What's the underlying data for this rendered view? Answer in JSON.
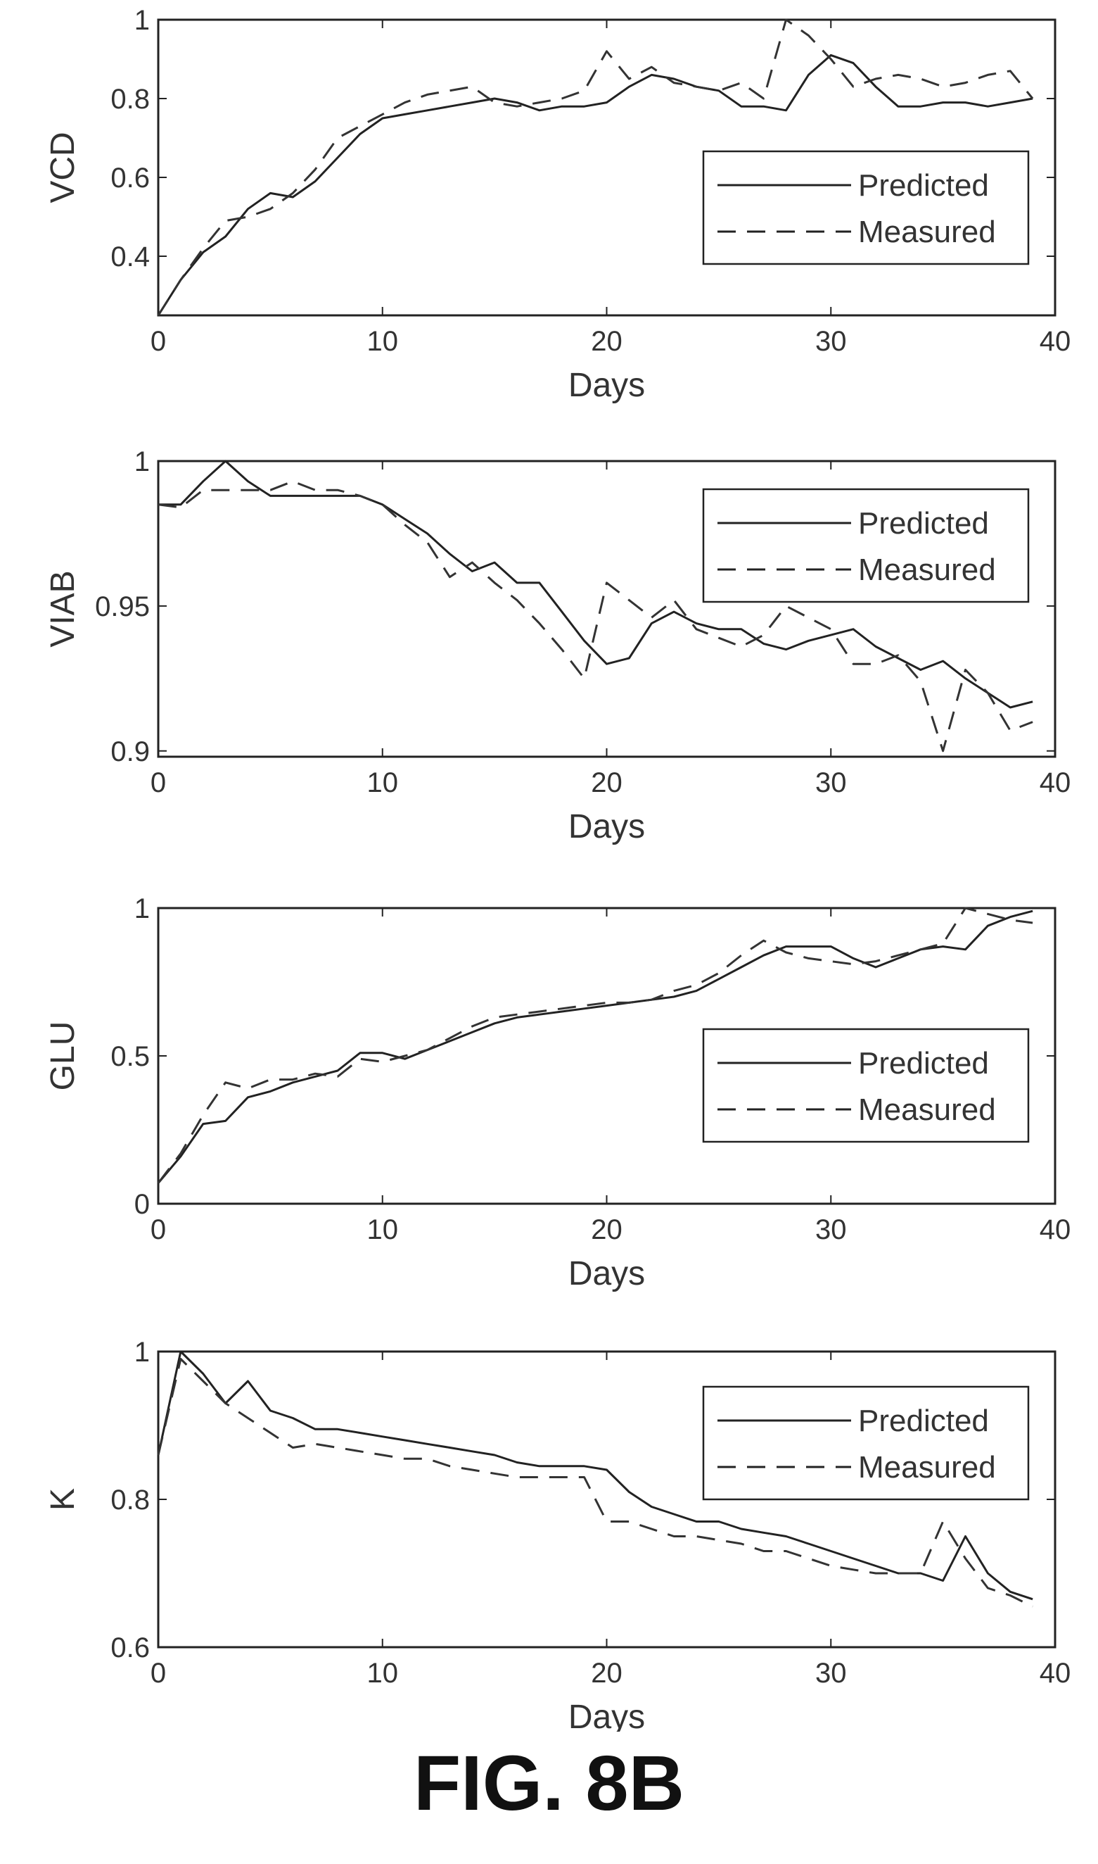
{
  "caption": "FIG. 8B",
  "chart_data": [
    {
      "type": "line",
      "ylabel": "VCD",
      "xlabel": "Days",
      "xlim": [
        0,
        40
      ],
      "ylim": [
        0.25,
        1.0
      ],
      "xticks": [
        0,
        10,
        20,
        30,
        40
      ],
      "yticks": [
        0.4,
        0.6,
        0.8,
        1
      ],
      "legend_position": "right",
      "series": [
        {
          "name": "Predicted",
          "style": "solid",
          "x": [
            0,
            1,
            2,
            3,
            4,
            5,
            6,
            7,
            8,
            9,
            10,
            11,
            12,
            13,
            14,
            15,
            16,
            17,
            18,
            19,
            20,
            21,
            22,
            23,
            24,
            25,
            26,
            27,
            28,
            29,
            30,
            31,
            32,
            33,
            34,
            35,
            36,
            37,
            38,
            39
          ],
          "y": [
            0.25,
            0.34,
            0.41,
            0.45,
            0.52,
            0.56,
            0.55,
            0.59,
            0.65,
            0.71,
            0.75,
            0.76,
            0.77,
            0.78,
            0.79,
            0.8,
            0.79,
            0.77,
            0.78,
            0.78,
            0.79,
            0.83,
            0.86,
            0.85,
            0.83,
            0.82,
            0.78,
            0.78,
            0.77,
            0.86,
            0.91,
            0.89,
            0.83,
            0.78,
            0.78,
            0.79,
            0.79,
            0.78,
            0.79,
            0.8
          ]
        },
        {
          "name": "Measured",
          "style": "dashed",
          "x": [
            0,
            1,
            2,
            3,
            4,
            5,
            6,
            7,
            8,
            9,
            10,
            11,
            12,
            13,
            14,
            15,
            16,
            17,
            18,
            19,
            20,
            21,
            22,
            23,
            24,
            25,
            26,
            27,
            28,
            29,
            30,
            31,
            32,
            33,
            34,
            35,
            36,
            37,
            38,
            39
          ],
          "y": [
            0.25,
            0.34,
            0.42,
            0.49,
            0.5,
            0.52,
            0.56,
            0.62,
            0.7,
            0.73,
            0.76,
            0.79,
            0.81,
            0.82,
            0.83,
            0.79,
            0.78,
            0.79,
            0.8,
            0.82,
            0.92,
            0.85,
            0.88,
            0.84,
            0.83,
            0.82,
            0.84,
            0.8,
            1.0,
            0.96,
            0.9,
            0.83,
            0.85,
            0.86,
            0.85,
            0.83,
            0.84,
            0.86,
            0.87,
            0.8
          ]
        }
      ]
    },
    {
      "type": "line",
      "ylabel": "VIAB",
      "xlabel": "Days",
      "xlim": [
        0,
        40
      ],
      "ylim": [
        0.898,
        1.0
      ],
      "xticks": [
        0,
        10,
        20,
        30,
        40
      ],
      "yticks": [
        0.9,
        0.95,
        1
      ],
      "ytick_labels": [
        "0.9",
        "0.95",
        "1"
      ],
      "legend_position": "top-right",
      "series": [
        {
          "name": "Predicted",
          "style": "solid",
          "x": [
            0,
            1,
            2,
            3,
            4,
            5,
            6,
            7,
            8,
            9,
            10,
            11,
            12,
            13,
            14,
            15,
            16,
            17,
            18,
            19,
            20,
            21,
            22,
            23,
            24,
            25,
            26,
            27,
            28,
            29,
            30,
            31,
            32,
            33,
            34,
            35,
            36,
            37,
            38,
            39
          ],
          "y": [
            0.985,
            0.985,
            0.993,
            1.0,
            0.993,
            0.988,
            0.988,
            0.988,
            0.988,
            0.988,
            0.985,
            0.98,
            0.975,
            0.968,
            0.962,
            0.965,
            0.958,
            0.958,
            0.948,
            0.938,
            0.93,
            0.932,
            0.944,
            0.948,
            0.944,
            0.942,
            0.942,
            0.937,
            0.935,
            0.938,
            0.94,
            0.942,
            0.936,
            0.932,
            0.928,
            0.931,
            0.925,
            0.92,
            0.915,
            0.917
          ]
        },
        {
          "name": "Measured",
          "style": "dashed",
          "x": [
            0,
            1,
            2,
            3,
            4,
            5,
            6,
            7,
            8,
            9,
            10,
            11,
            12,
            13,
            14,
            15,
            16,
            17,
            18,
            19,
            20,
            21,
            22,
            23,
            24,
            25,
            26,
            27,
            28,
            29,
            30,
            31,
            32,
            33,
            34,
            35,
            36,
            37,
            38,
            39
          ],
          "y": [
            0.985,
            0.984,
            0.99,
            0.99,
            0.99,
            0.99,
            0.993,
            0.99,
            0.99,
            0.988,
            0.985,
            0.978,
            0.972,
            0.96,
            0.965,
            0.958,
            0.952,
            0.944,
            0.935,
            0.925,
            0.958,
            0.952,
            0.946,
            0.952,
            0.942,
            0.939,
            0.936,
            0.94,
            0.95,
            0.946,
            0.942,
            0.93,
            0.93,
            0.933,
            0.924,
            0.9,
            0.928,
            0.92,
            0.907,
            0.91
          ]
        }
      ]
    },
    {
      "type": "line",
      "ylabel": "GLU",
      "xlabel": "Days",
      "xlim": [
        0,
        40
      ],
      "ylim": [
        0,
        1
      ],
      "xticks": [
        0,
        10,
        20,
        30,
        40
      ],
      "yticks": [
        0,
        0.5,
        1
      ],
      "legend_position": "right",
      "series": [
        {
          "name": "Predicted",
          "style": "solid",
          "x": [
            0,
            1,
            2,
            3,
            4,
            5,
            6,
            7,
            8,
            9,
            10,
            11,
            12,
            13,
            14,
            15,
            16,
            17,
            18,
            19,
            20,
            21,
            22,
            23,
            24,
            25,
            26,
            27,
            28,
            29,
            30,
            31,
            32,
            33,
            34,
            35,
            36,
            37,
            38,
            39
          ],
          "y": [
            0.07,
            0.16,
            0.27,
            0.28,
            0.36,
            0.38,
            0.41,
            0.43,
            0.45,
            0.51,
            0.51,
            0.49,
            0.52,
            0.55,
            0.58,
            0.61,
            0.63,
            0.64,
            0.65,
            0.66,
            0.67,
            0.68,
            0.69,
            0.7,
            0.72,
            0.76,
            0.8,
            0.84,
            0.87,
            0.87,
            0.87,
            0.83,
            0.8,
            0.83,
            0.86,
            0.87,
            0.86,
            0.94,
            0.97,
            0.99
          ]
        },
        {
          "name": "Measured",
          "style": "dashed",
          "x": [
            0,
            1,
            2,
            3,
            4,
            5,
            6,
            7,
            8,
            9,
            10,
            11,
            12,
            13,
            14,
            15,
            16,
            17,
            18,
            19,
            20,
            21,
            22,
            23,
            24,
            25,
            26,
            27,
            28,
            29,
            30,
            31,
            32,
            33,
            34,
            35,
            36,
            37,
            38,
            39
          ],
          "y": [
            0.07,
            0.17,
            0.3,
            0.41,
            0.39,
            0.42,
            0.42,
            0.44,
            0.43,
            0.49,
            0.48,
            0.5,
            0.52,
            0.56,
            0.6,
            0.63,
            0.64,
            0.65,
            0.66,
            0.67,
            0.68,
            0.68,
            0.69,
            0.72,
            0.74,
            0.78,
            0.84,
            0.89,
            0.85,
            0.83,
            0.82,
            0.81,
            0.82,
            0.84,
            0.86,
            0.88,
            1.0,
            0.98,
            0.96,
            0.95
          ]
        }
      ]
    },
    {
      "type": "line",
      "ylabel": "K",
      "xlabel": "Days",
      "xlim": [
        0,
        40
      ],
      "ylim": [
        0.6,
        1
      ],
      "xticks": [
        0,
        10,
        20,
        30,
        40
      ],
      "yticks": [
        0.6,
        0.8,
        1
      ],
      "legend_position": "top-right",
      "series": [
        {
          "name": "Predicted",
          "style": "solid",
          "x": [
            0,
            1,
            2,
            3,
            4,
            5,
            6,
            7,
            8,
            9,
            10,
            11,
            12,
            13,
            14,
            15,
            16,
            17,
            18,
            19,
            20,
            21,
            22,
            23,
            24,
            25,
            26,
            27,
            28,
            29,
            30,
            31,
            32,
            33,
            34,
            35,
            36,
            37,
            38,
            39
          ],
          "y": [
            0.86,
            1.0,
            0.97,
            0.93,
            0.96,
            0.92,
            0.91,
            0.895,
            0.895,
            0.89,
            0.885,
            0.88,
            0.875,
            0.87,
            0.865,
            0.86,
            0.85,
            0.845,
            0.845,
            0.845,
            0.84,
            0.81,
            0.79,
            0.78,
            0.77,
            0.77,
            0.76,
            0.755,
            0.75,
            0.74,
            0.73,
            0.72,
            0.71,
            0.7,
            0.7,
            0.69,
            0.75,
            0.7,
            0.675,
            0.665
          ]
        },
        {
          "name": "Measured",
          "style": "dashed",
          "x": [
            0,
            1,
            2,
            3,
            4,
            5,
            6,
            7,
            8,
            9,
            10,
            11,
            12,
            13,
            14,
            15,
            16,
            17,
            18,
            19,
            20,
            21,
            22,
            23,
            24,
            25,
            26,
            27,
            28,
            29,
            30,
            31,
            32,
            33,
            34,
            35,
            36,
            37,
            38,
            39
          ],
          "y": [
            0.86,
            0.99,
            0.96,
            0.93,
            0.91,
            0.89,
            0.87,
            0.875,
            0.87,
            0.865,
            0.86,
            0.855,
            0.855,
            0.845,
            0.84,
            0.835,
            0.83,
            0.83,
            0.83,
            0.83,
            0.77,
            0.77,
            0.76,
            0.75,
            0.75,
            0.745,
            0.74,
            0.73,
            0.73,
            0.72,
            0.71,
            0.705,
            0.7,
            0.7,
            0.7,
            0.77,
            0.72,
            0.68,
            0.67,
            0.655
          ]
        }
      ]
    }
  ]
}
